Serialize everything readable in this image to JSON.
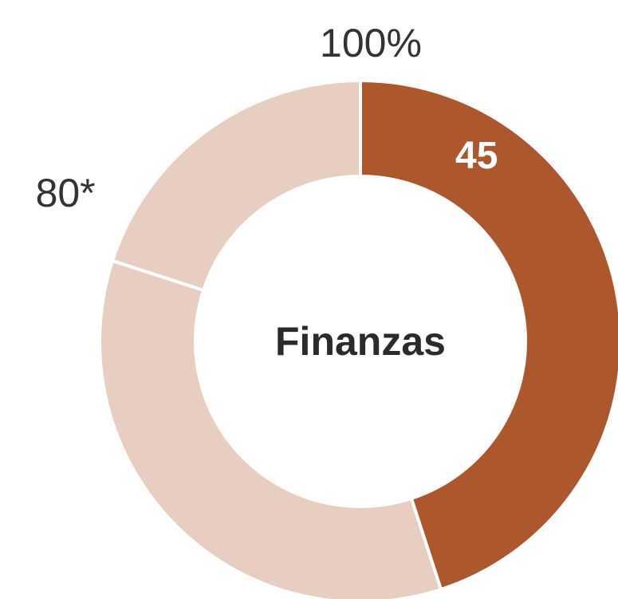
{
  "chart_data": {
    "type": "donut",
    "title": "Finanzas",
    "categories": [
      null,
      null,
      null
    ],
    "values": [
      45,
      35,
      20
    ],
    "value_labels": [
      "45",
      null,
      null
    ],
    "colors": [
      "#ad572d",
      "#e8cdc1",
      "#e8cdc1"
    ],
    "lim": [
      0,
      100
    ],
    "ticks": [
      {
        "value": 80,
        "label": "80*"
      },
      {
        "value": 100,
        "label": "100%"
      }
    ]
  }
}
